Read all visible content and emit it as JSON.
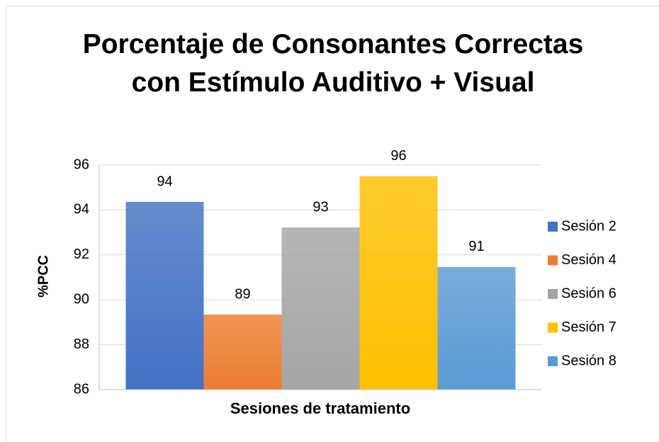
{
  "chart_data": {
    "type": "bar",
    "title": "Porcentaje de Consonantes Correctas con Estímulo Auditivo + Visual",
    "y_label": "%PCC",
    "x_label": "Sesiones de tratamiento",
    "categories": [
      null
    ],
    "series": [
      {
        "name": "Sesión 2",
        "color": "#4472c4",
        "values": [
          94.36
        ],
        "value_labels": [
          "94"
        ]
      },
      {
        "name": "Sesión 4",
        "color": "#ed7d31",
        "values": [
          89.34
        ],
        "value_labels": [
          "89"
        ]
      },
      {
        "name": "Sesión 6",
        "color": "#a5a5a5",
        "values": [
          93.22
        ],
        "value_labels": [
          "93"
        ]
      },
      {
        "name": "Sesión 7",
        "color": "#ffc000",
        "values": [
          95.5
        ],
        "value_labels": [
          "96"
        ]
      },
      {
        "name": "Sesión 8",
        "color": "#5b9bd5",
        "values": [
          91.46
        ],
        "value_labels": [
          "91"
        ]
      }
    ],
    "ylim": [
      86,
      96
    ],
    "yticks": [
      86,
      88,
      90,
      92,
      94,
      96
    ],
    "grid": true,
    "legend": "right"
  }
}
